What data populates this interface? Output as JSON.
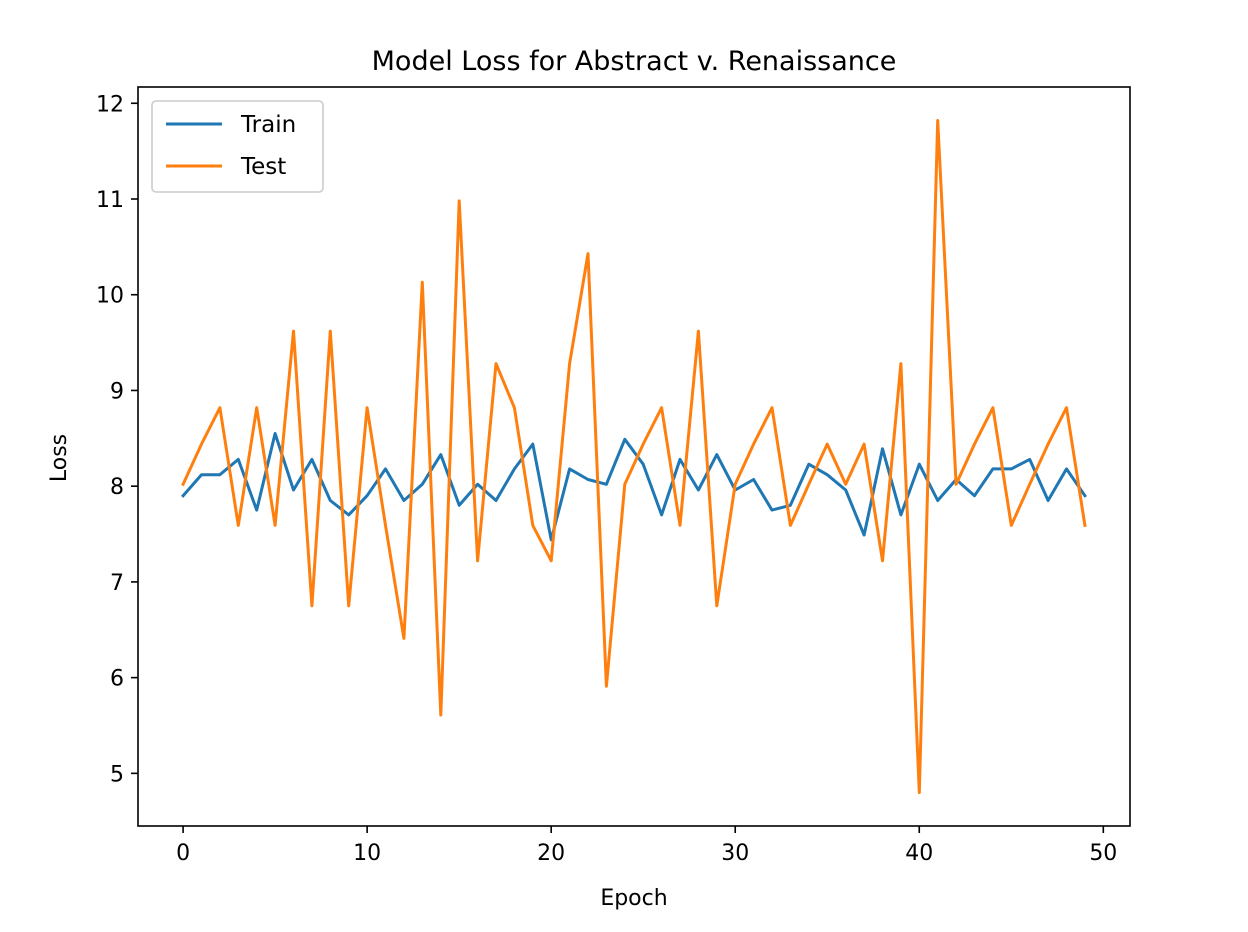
{
  "chart_data": {
    "type": "line",
    "title": "Model Loss for Abstract v. Renaissance",
    "xlabel": "Epoch",
    "ylabel": "Loss",
    "xlim": [
      -2.45,
      51.45
    ],
    "ylim": [
      4.45,
      12.17
    ],
    "xticks": [
      0,
      10,
      20,
      30,
      40,
      50
    ],
    "yticks": [
      5,
      6,
      7,
      8,
      9,
      10,
      11,
      12
    ],
    "grid": false,
    "legend_position": "top-left",
    "x": [
      0,
      1,
      2,
      3,
      4,
      5,
      6,
      7,
      8,
      9,
      10,
      11,
      12,
      13,
      14,
      15,
      16,
      17,
      18,
      19,
      20,
      21,
      22,
      23,
      24,
      25,
      26,
      27,
      28,
      29,
      30,
      31,
      32,
      33,
      34,
      35,
      36,
      37,
      38,
      39,
      40,
      41,
      42,
      43,
      44,
      45,
      46,
      47,
      48,
      49
    ],
    "series": [
      {
        "name": "Train",
        "color": "#1f77b4",
        "values": [
          7.9,
          8.12,
          8.12,
          8.28,
          7.75,
          8.55,
          7.96,
          8.28,
          7.85,
          7.7,
          7.9,
          8.18,
          7.85,
          8.02,
          8.33,
          7.8,
          8.02,
          7.85,
          8.18,
          8.44,
          7.44,
          8.18,
          8.07,
          8.02,
          8.49,
          8.23,
          7.7,
          8.28,
          7.96,
          8.33,
          7.96,
          8.07,
          7.75,
          7.8,
          8.23,
          8.12,
          7.96,
          7.49,
          8.39,
          7.7,
          8.23,
          7.85,
          8.07,
          7.9,
          8.18,
          8.18,
          8.28,
          7.85,
          8.18,
          7.9
        ]
      },
      {
        "name": "Test",
        "color": "#ff7f0e",
        "values": [
          8.02,
          8.44,
          8.82,
          7.59,
          8.82,
          7.59,
          9.62,
          6.75,
          9.62,
          6.75,
          8.82,
          7.59,
          6.41,
          10.13,
          5.61,
          10.98,
          7.22,
          9.28,
          8.82,
          7.59,
          7.22,
          9.28,
          10.43,
          5.91,
          8.02,
          8.44,
          8.82,
          7.59,
          9.62,
          6.75,
          8.02,
          8.44,
          8.82,
          7.59,
          8.02,
          8.44,
          8.02,
          8.44,
          7.22,
          9.28,
          4.8,
          11.82,
          8.02,
          8.44,
          8.82,
          7.59,
          8.02,
          8.44,
          8.82,
          7.59
        ]
      }
    ]
  }
}
